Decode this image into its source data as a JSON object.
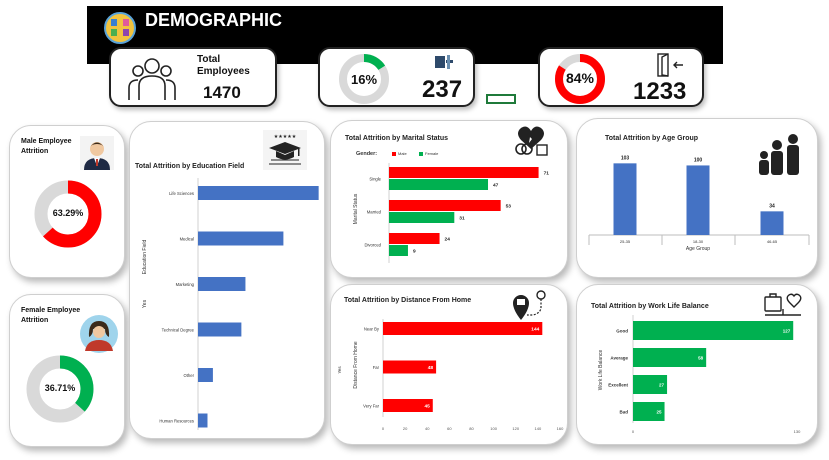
{
  "header": {
    "title": "DEMOGRAPHIC"
  },
  "kpis": {
    "total_employees_label": "Total Employees",
    "total_employees_value": "1470",
    "attrition_pct": "16%",
    "attrition_count": "237",
    "retained_pct": "84%",
    "retained_count": "1233"
  },
  "colors": {
    "red": "#ff0000",
    "green": "#00b050",
    "blue": "#4472c4",
    "grey": "#d9d9d9"
  },
  "male_card": {
    "title": "Male Employee Attrition",
    "value": "63.29%",
    "fraction": 0.6329
  },
  "female_card": {
    "title": "Female Employee Attrition",
    "value": "36.71%",
    "fraction": 0.3671
  },
  "chart_data": [
    {
      "id": "education",
      "type": "bar",
      "orientation": "horizontal",
      "title": "Total Attrition by Education Field",
      "ylabel": "Education Field",
      "side_label": "Yes",
      "categories": [
        "Life Sciences",
        "Medical",
        "Marketing",
        "Technical Degree",
        "Other",
        "Human Resources"
      ],
      "values": [
        89,
        63,
        35,
        32,
        11,
        7
      ],
      "xlim": [
        0,
        90
      ],
      "color": "#4472c4"
    },
    {
      "id": "marital",
      "type": "bar",
      "orientation": "horizontal",
      "title": "Total Attrition by Marital Status",
      "ylabel": "Marital Status",
      "legend_title": "Gender:",
      "categories": [
        "Single",
        "Married",
        "Divorced"
      ],
      "series": [
        {
          "name": "Male",
          "values": [
            71,
            53,
            24
          ],
          "color": "#ff0000"
        },
        {
          "name": "Female",
          "values": [
            47,
            31,
            9
          ],
          "color": "#00b050"
        }
      ],
      "xlim": [
        0,
        75
      ]
    },
    {
      "id": "age",
      "type": "bar",
      "orientation": "vertical",
      "title": "Total Attrition by Age Group",
      "xlabel": "Age Group",
      "categories": [
        "25-35",
        "18-30",
        "46-65"
      ],
      "values": [
        103,
        100,
        34
      ],
      "ylim": [
        0,
        115
      ],
      "color": "#4472c4"
    },
    {
      "id": "distance",
      "type": "bar",
      "orientation": "horizontal",
      "title": "Total Attrition by Distance From Home",
      "ylabel": "Distance From Home",
      "side_label": "Yes",
      "categories": [
        "Near By",
        "Far",
        "Very Far"
      ],
      "values": [
        144,
        48,
        45
      ],
      "xlim": [
        0,
        160
      ],
      "xticks": [
        "0",
        "20",
        "40",
        "60",
        "80",
        "100",
        "120",
        "140",
        "160"
      ],
      "color": "#ff0000"
    },
    {
      "id": "worklife",
      "type": "bar",
      "orientation": "horizontal",
      "title": "Total Attrition by Work Life Balance",
      "ylabel": "Work Life Balance",
      "categories": [
        "Good",
        "Average",
        "Excellent",
        "Bad"
      ],
      "values": [
        127,
        58,
        27,
        25
      ],
      "xlim": [
        0,
        130
      ],
      "xticks": [
        "0",
        "130"
      ],
      "color": "#00b050"
    }
  ]
}
